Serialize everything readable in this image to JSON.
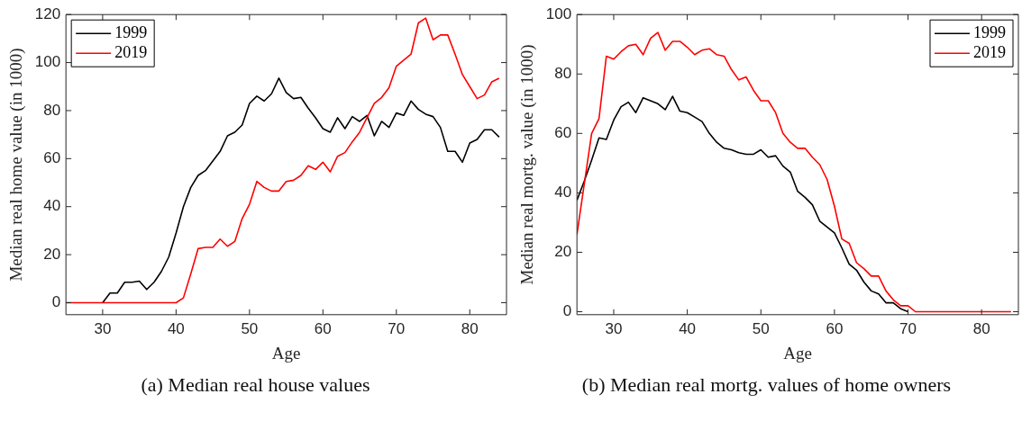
{
  "chart_data": [
    {
      "type": "line",
      "xlabel": "Age",
      "ylabel": "Median real home value (in 1000)",
      "annotations": [
        "(a) Median real house values"
      ],
      "legend": "top left",
      "marker": "none",
      "xlim": [
        25,
        85
      ],
      "xticks": [
        30,
        40,
        50,
        60,
        70,
        80
      ],
      "ylim": [
        -5,
        120
      ],
      "yticks": [
        0,
        20,
        40,
        60,
        80,
        100,
        120
      ],
      "x": [
        25,
        26,
        27,
        28,
        29,
        30,
        31,
        32,
        33,
        34,
        35,
        36,
        37,
        38,
        39,
        40,
        41,
        42,
        43,
        44,
        45,
        46,
        47,
        48,
        49,
        50,
        51,
        52,
        53,
        54,
        55,
        56,
        57,
        58,
        59,
        60,
        61,
        62,
        63,
        64,
        65,
        66,
        67,
        68,
        69,
        70,
        71,
        72,
        73,
        74,
        75,
        76,
        77,
        78,
        79,
        80,
        81,
        82,
        83,
        84
      ],
      "series": [
        {
          "name": "1999",
          "color": "#000000",
          "values": [
            null,
            null,
            null,
            null,
            null,
            0,
            4,
            4,
            8.5,
            8.5,
            9,
            5.5,
            8.5,
            13,
            19,
            29,
            40,
            48,
            53,
            55,
            59,
            63,
            69.5,
            71,
            74,
            83,
            86,
            84,
            87,
            93.5,
            87.5,
            85,
            85.5,
            81,
            77,
            72.5,
            71,
            77,
            72.5,
            77.5,
            75.5,
            78,
            69.5,
            75.5,
            73,
            79,
            78,
            84,
            80.5,
            78.5,
            77.5,
            73,
            63,
            63,
            58.5,
            66.5,
            68,
            72,
            72,
            69
          ]
        },
        {
          "name": "2019",
          "color": "#ff0000",
          "values": [
            0,
            0,
            0,
            0,
            0,
            0,
            0,
            0,
            0,
            0,
            0,
            0,
            0,
            0,
            0,
            0,
            2,
            12,
            22.5,
            23,
            23,
            26.5,
            23.5,
            25.5,
            35,
            41,
            50.5,
            48,
            46.5,
            46.5,
            50.5,
            51,
            53,
            57,
            55.5,
            58.5,
            54.5,
            61,
            62.5,
            67,
            71,
            77,
            83,
            85.5,
            89.5,
            98.5,
            101,
            103.5,
            116.5,
            118.5,
            109.5,
            111.5,
            111.5,
            103.5,
            95,
            90,
            85,
            86.5,
            92,
            93.5
          ]
        }
      ]
    },
    {
      "type": "line",
      "xlabel": "Age",
      "ylabel": "Median real mortg. value (in 1000)",
      "annotations": [
        "(b) Median real mortg. values of home owners"
      ],
      "legend": "top right",
      "marker": "none",
      "xlim": [
        25,
        85
      ],
      "xticks": [
        30,
        40,
        50,
        60,
        70,
        80
      ],
      "ylim": [
        -1,
        100
      ],
      "yticks": [
        0,
        20,
        40,
        60,
        80,
        100
      ],
      "x": [
        25,
        26,
        27,
        28,
        29,
        30,
        31,
        32,
        33,
        34,
        35,
        36,
        37,
        38,
        39,
        40,
        41,
        42,
        43,
        44,
        45,
        46,
        47,
        48,
        49,
        50,
        51,
        52,
        53,
        54,
        55,
        56,
        57,
        58,
        59,
        60,
        61,
        62,
        63,
        64,
        65,
        66,
        67,
        68,
        69,
        70,
        71,
        72,
        73,
        74,
        75,
        76,
        77,
        78,
        79,
        80,
        81,
        82,
        83,
        84
      ],
      "series": [
        {
          "name": "1999",
          "color": "#000000",
          "values": [
            37.5,
            44,
            51,
            58.5,
            58,
            64.5,
            69,
            70.5,
            67,
            72,
            71,
            70,
            68,
            72.5,
            67.5,
            67,
            65.5,
            64,
            60,
            57,
            55,
            54.5,
            53.5,
            53,
            53,
            54.5,
            52,
            52.5,
            49,
            47,
            40.5,
            38.5,
            36,
            30.5,
            28.5,
            26.5,
            21.5,
            16,
            14,
            10,
            7,
            6,
            3,
            3,
            1,
            0,
            null,
            null,
            null,
            null,
            null,
            null,
            null,
            null,
            null,
            null,
            null,
            null,
            null,
            null
          ]
        },
        {
          "name": "2019",
          "color": "#ff0000",
          "values": [
            26,
            43,
            60,
            65,
            86,
            85,
            87.5,
            89.5,
            90,
            86.5,
            92,
            94,
            88,
            91,
            91,
            89,
            86.5,
            88,
            88.5,
            86.5,
            86,
            81.5,
            78,
            79,
            74.5,
            71,
            71,
            67,
            60,
            57,
            55,
            55,
            52,
            49.5,
            44.5,
            35.5,
            24.5,
            23,
            16.5,
            14.5,
            12,
            12,
            7,
            4,
            2,
            2,
            0,
            0,
            0,
            0,
            0,
            0,
            0,
            0,
            0,
            0,
            0,
            0,
            0,
            0
          ]
        }
      ]
    }
  ]
}
